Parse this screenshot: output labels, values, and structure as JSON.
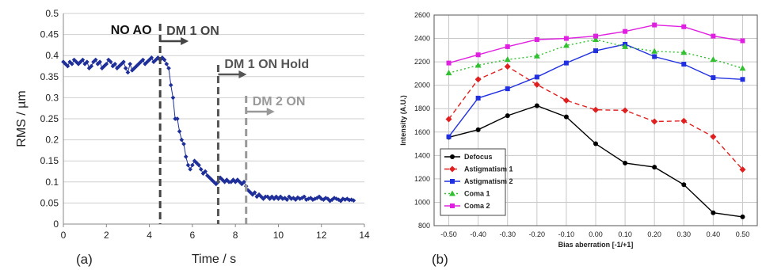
{
  "panel_labels": [
    "(a)",
    "(b)"
  ],
  "chart_data": [
    {
      "type": "scatter",
      "xlabel": "Time / s",
      "ylabel": "RMS / µm",
      "xlim": [
        0,
        14
      ],
      "ylim": [
        0,
        0.5
      ],
      "xticks": [
        0,
        2,
        4,
        6,
        8,
        10,
        12,
        14
      ],
      "yticks": [
        0,
        0.05,
        0.1,
        0.15,
        0.2,
        0.25,
        0.3,
        0.35,
        0.4,
        0.45,
        0.5
      ],
      "grid": "horizontal",
      "series_color": "#1f2f99",
      "series": [
        {
          "x": [
            0.0,
            0.1,
            0.2,
            0.3,
            0.4,
            0.5,
            0.6,
            0.7,
            0.8,
            0.9,
            1.0,
            1.1,
            1.2,
            1.3,
            1.4,
            1.5,
            1.6,
            1.7,
            1.8,
            1.9,
            2.0,
            2.1,
            2.2,
            2.3,
            2.4,
            2.5,
            2.6,
            2.7,
            2.8,
            2.9,
            3.0,
            3.1,
            3.2,
            3.3,
            3.4,
            3.5,
            3.6,
            3.7,
            3.8,
            3.9,
            4.0,
            4.1,
            4.2,
            4.3,
            4.4,
            4.5,
            4.6,
            4.7,
            4.8,
            4.9,
            5.0,
            5.1,
            5.2,
            5.3,
            5.4,
            5.5,
            5.6,
            5.7,
            5.8,
            5.9,
            6.0,
            6.1,
            6.2,
            6.3,
            6.4,
            6.5,
            6.6,
            6.7,
            6.8,
            6.9,
            7.0,
            7.1,
            7.2,
            7.3,
            7.4,
            7.5,
            7.6,
            7.7,
            7.8,
            7.9,
            8.0,
            8.1,
            8.2,
            8.3,
            8.4,
            8.5,
            8.6,
            8.7,
            8.8,
            8.9,
            9.0,
            9.1,
            9.2,
            9.3,
            9.4,
            9.5,
            9.6,
            9.7,
            9.8,
            9.9,
            10.0,
            10.1,
            10.2,
            10.3,
            10.4,
            10.5,
            10.6,
            10.7,
            10.8,
            10.9,
            11.0,
            11.1,
            11.2,
            11.3,
            11.4,
            11.5,
            11.6,
            11.7,
            11.8,
            11.9,
            12.0,
            12.1,
            12.2,
            12.3,
            12.4,
            12.5,
            12.6,
            12.7,
            12.8,
            12.9,
            13.0,
            13.1,
            13.2,
            13.3,
            13.4,
            13.5
          ],
          "y": [
            0.385,
            0.38,
            0.375,
            0.385,
            0.38,
            0.39,
            0.385,
            0.38,
            0.385,
            0.39,
            0.38,
            0.385,
            0.37,
            0.375,
            0.385,
            0.39,
            0.38,
            0.385,
            0.37,
            0.375,
            0.38,
            0.39,
            0.385,
            0.375,
            0.38,
            0.37,
            0.375,
            0.38,
            0.385,
            0.37,
            0.36,
            0.38,
            0.365,
            0.37,
            0.375,
            0.38,
            0.385,
            0.39,
            0.38,
            0.385,
            0.39,
            0.395,
            0.385,
            0.39,
            0.395,
            0.39,
            0.395,
            0.39,
            0.38,
            0.37,
            0.33,
            0.3,
            0.25,
            0.25,
            0.22,
            0.2,
            0.19,
            0.16,
            0.14,
            0.13,
            0.14,
            0.15,
            0.145,
            0.14,
            0.13,
            0.12,
            0.125,
            0.115,
            0.11,
            0.105,
            0.1,
            0.095,
            0.1,
            0.11,
            0.105,
            0.1,
            0.105,
            0.1,
            0.1,
            0.105,
            0.1,
            0.105,
            0.1,
            0.095,
            0.1,
            0.09,
            0.08,
            0.075,
            0.07,
            0.075,
            0.065,
            0.07,
            0.065,
            0.06,
            0.065,
            0.065,
            0.06,
            0.065,
            0.06,
            0.065,
            0.06,
            0.065,
            0.06,
            0.062,
            0.058,
            0.065,
            0.06,
            0.062,
            0.058,
            0.063,
            0.06,
            0.062,
            0.065,
            0.058,
            0.06,
            0.062,
            0.058,
            0.06,
            0.062,
            0.065,
            0.06,
            0.058,
            0.062,
            0.06,
            0.055,
            0.058,
            0.062,
            0.06,
            0.058,
            0.055,
            0.06,
            0.058,
            0.06,
            0.057,
            0.058,
            0.056
          ]
        }
      ],
      "annotations": [
        {
          "label": "NO AO",
          "x": 2.2,
          "color": "#111111"
        },
        {
          "label": "DM 1 ON",
          "line_x": 4.5,
          "color": "#444444"
        },
        {
          "label": "DM 1 ON Hold",
          "line_x": 7.2,
          "color": "#555555"
        },
        {
          "label": "DM 2 ON",
          "line_x": 8.5,
          "color": "#999999"
        }
      ]
    },
    {
      "type": "line",
      "xlabel": "Bias aberration [-1/+1]",
      "ylabel": "Intensity (A.U.)",
      "categories": [
        "-0.50",
        "-0.40",
        "-0.30",
        "-0.20",
        "-0.10",
        "0.00",
        "0.10",
        "0.20",
        "0.30",
        "0.40",
        "0.50"
      ],
      "ylim": [
        800,
        2600
      ],
      "yticks": [
        800,
        1000,
        1200,
        1400,
        1600,
        1800,
        2000,
        2200,
        2400,
        2600
      ],
      "grid": "both",
      "legend_position": "bottom-left",
      "series": [
        {
          "name": "Defocus",
          "color": "#000000",
          "marker": "circle",
          "dash": "solid",
          "values": [
            1555,
            1620,
            1740,
            1825,
            1730,
            1500,
            1335,
            1300,
            1150,
            910,
            875
          ]
        },
        {
          "name": "Astigmatism 1",
          "color": "#e02020",
          "marker": "diamond",
          "dash": "dash",
          "values": [
            1710,
            2050,
            2160,
            2005,
            1870,
            1790,
            1785,
            1690,
            1695,
            1560,
            1280
          ]
        },
        {
          "name": "Astigmatism 2",
          "color": "#2030e0",
          "marker": "square",
          "dash": "solid",
          "values": [
            1560,
            1890,
            1970,
            2070,
            2190,
            2295,
            2350,
            2245,
            2180,
            2065,
            2050
          ]
        },
        {
          "name": "Coma 1",
          "color": "#30c030",
          "marker": "triangle",
          "dash": "dot",
          "values": [
            2105,
            2170,
            2220,
            2250,
            2340,
            2390,
            2330,
            2290,
            2280,
            2220,
            2145
          ]
        },
        {
          "name": "Coma 2",
          "color": "#e020e0",
          "marker": "square",
          "dash": "solid",
          "values": [
            2190,
            2260,
            2330,
            2390,
            2400,
            2420,
            2460,
            2515,
            2500,
            2420,
            2380
          ]
        }
      ]
    }
  ]
}
